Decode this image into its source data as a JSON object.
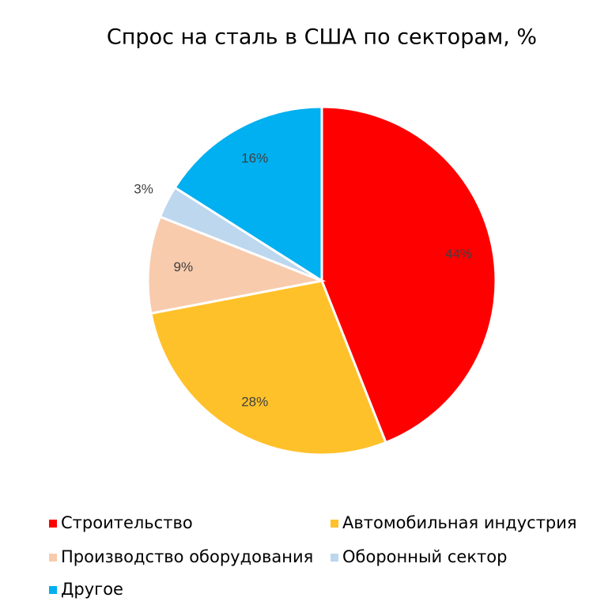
{
  "chart_data": {
    "type": "pie",
    "title": "Спрос на сталь в США по секторам, %",
    "categories": [
      "Строительство",
      "Автомобильная индустрия",
      "Производство оборудования",
      "Оборонный сектор",
      "Другое"
    ],
    "values": [
      44,
      28,
      9,
      3,
      16
    ],
    "value_labels": [
      "44%",
      "28%",
      "9%",
      "3%",
      "16%"
    ],
    "colors": [
      "#ff0000",
      "#ffc12a",
      "#f8cbad",
      "#bdd7ee",
      "#00b0f0"
    ],
    "legend": "bottom"
  }
}
